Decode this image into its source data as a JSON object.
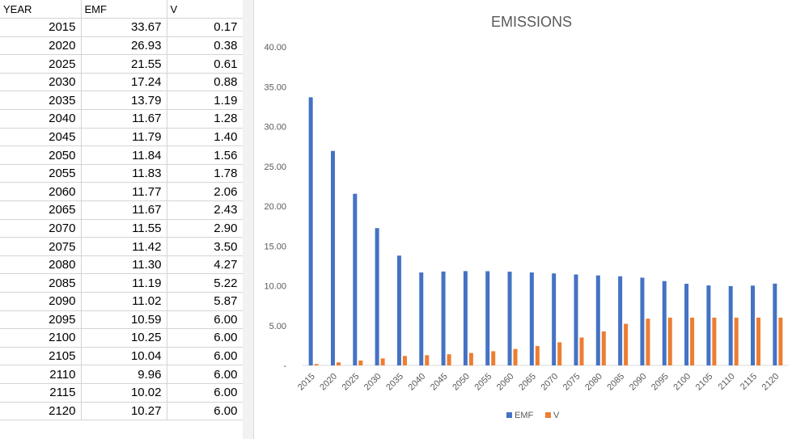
{
  "sheet": {
    "headers": [
      "YEAR",
      "EMF",
      "V"
    ],
    "rows": [
      [
        "2015",
        "33.67",
        "0.17"
      ],
      [
        "2020",
        "26.93",
        "0.38"
      ],
      [
        "2025",
        "21.55",
        "0.61"
      ],
      [
        "2030",
        "17.24",
        "0.88"
      ],
      [
        "2035",
        "13.79",
        "1.19"
      ],
      [
        "2040",
        "11.67",
        "1.28"
      ],
      [
        "2045",
        "11.79",
        "1.40"
      ],
      [
        "2050",
        "11.84",
        "1.56"
      ],
      [
        "2055",
        "11.83",
        "1.78"
      ],
      [
        "2060",
        "11.77",
        "2.06"
      ],
      [
        "2065",
        "11.67",
        "2.43"
      ],
      [
        "2070",
        "11.55",
        "2.90"
      ],
      [
        "2075",
        "11.42",
        "3.50"
      ],
      [
        "2080",
        "11.30",
        "4.27"
      ],
      [
        "2085",
        "11.19",
        "5.22"
      ],
      [
        "2090",
        "11.02",
        "5.87"
      ],
      [
        "2095",
        "10.59",
        "6.00"
      ],
      [
        "2100",
        "10.25",
        "6.00"
      ],
      [
        "2105",
        "10.04",
        "6.00"
      ],
      [
        "2110",
        "9.96",
        "6.00"
      ],
      [
        "2115",
        "10.02",
        "6.00"
      ],
      [
        "2120",
        "10.27",
        "6.00"
      ]
    ]
  },
  "chart_data": {
    "type": "bar",
    "title": "EMISSIONS",
    "categories": [
      "2015",
      "2020",
      "2025",
      "2030",
      "2035",
      "2040",
      "2045",
      "2050",
      "2055",
      "2060",
      "2065",
      "2070",
      "2075",
      "2080",
      "2085",
      "2090",
      "2095",
      "2100",
      "2105",
      "2110",
      "2115",
      "2120"
    ],
    "series": [
      {
        "name": "EMF",
        "color": "#4472c4",
        "values": [
          33.67,
          26.93,
          21.55,
          17.24,
          13.79,
          11.67,
          11.79,
          11.84,
          11.83,
          11.77,
          11.67,
          11.55,
          11.42,
          11.3,
          11.19,
          11.02,
          10.59,
          10.25,
          10.04,
          9.96,
          10.02,
          10.27
        ]
      },
      {
        "name": "V",
        "color": "#ed7d31",
        "values": [
          0.17,
          0.38,
          0.61,
          0.88,
          1.19,
          1.28,
          1.4,
          1.56,
          1.78,
          2.06,
          2.43,
          2.9,
          3.5,
          4.27,
          5.22,
          5.87,
          6.0,
          6.0,
          6.0,
          6.0,
          6.0,
          6.0
        ]
      }
    ],
    "ylim": [
      0,
      40
    ],
    "yticks": [
      "-",
      "5.00",
      "10.00",
      "15.00",
      "20.00",
      "25.00",
      "30.00",
      "35.00",
      "40.00"
    ],
    "xlabel": "",
    "ylabel": "",
    "grid": false,
    "legend": "bottom"
  }
}
